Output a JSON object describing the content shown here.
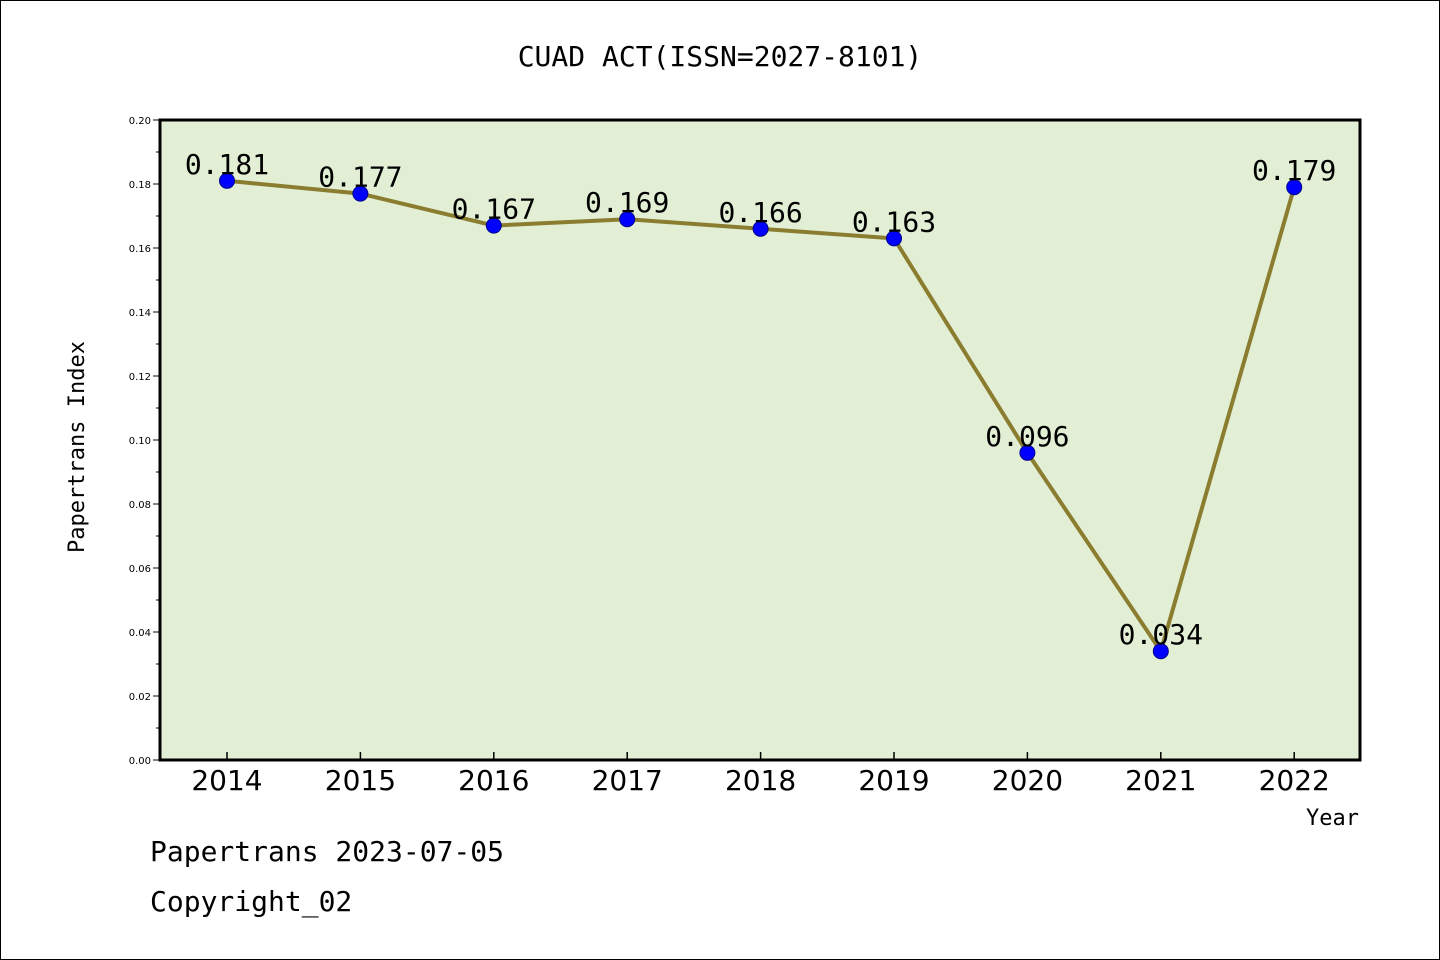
{
  "chart_data": {
    "type": "line",
    "title": "CUAD ACT(ISSN=2027-8101)",
    "xlabel": "Year",
    "ylabel": "Papertrans Index",
    "categories": [
      "2014",
      "2015",
      "2016",
      "2017",
      "2018",
      "2019",
      "2020",
      "2021",
      "2022"
    ],
    "series": [
      {
        "values": [
          0.181,
          0.177,
          0.167,
          0.169,
          0.166,
          0.163,
          0.096,
          0.034,
          0.179
        ]
      }
    ],
    "data_labels": [
      "0.181",
      "0.177",
      "0.167",
      "0.169",
      "0.166",
      "0.163",
      "0.096",
      "0.034",
      "0.179"
    ],
    "ylim": [
      0,
      0.2
    ],
    "yticks": [
      "0.00",
      "0.02",
      "0.04",
      "0.06",
      "0.08",
      "0.10",
      "0.12",
      "0.14",
      "0.16",
      "0.18",
      "0.20"
    ],
    "grid": false,
    "colors": {
      "line": "#8B7D30",
      "marker": "#0000FF",
      "plot_background": "#E2EFD5"
    }
  },
  "footer": {
    "line1": "Papertrans 2023-07-05",
    "line2": "Copyright_02"
  }
}
